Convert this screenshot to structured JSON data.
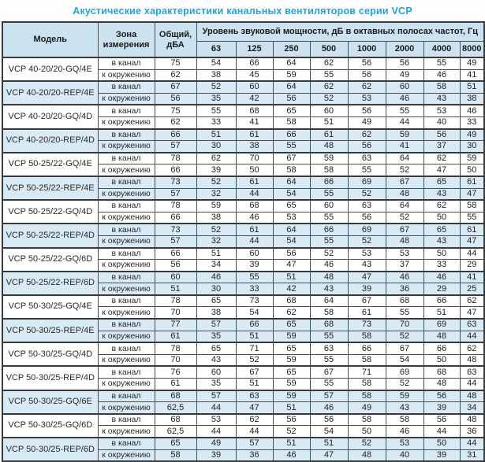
{
  "title": "Акустические характеристики канальных вентиляторов  серии VCP",
  "colors": {
    "title_accent": "#1da6dd",
    "header_bg": "#cbe2f1",
    "highlight_row_bg": "#d8eaf6",
    "border": "#4d4d4d"
  },
  "table": {
    "headers": {
      "model": "Модель",
      "zone": "Зона измерения",
      "total": "Общий, дБА",
      "freq_title": "Уровень звуковой мощности, дБ в октавных полосах частот, Гц",
      "frequencies": [
        "63",
        "125",
        "250",
        "500",
        "1000",
        "2000",
        "4000",
        "8000"
      ]
    },
    "zone_labels": [
      "в канал",
      "к окружению"
    ],
    "groups": [
      {
        "model": "VCP 40-20/20-GQ/4E",
        "highlight": false,
        "rows": [
          {
            "zone": "в канал",
            "total": "75",
            "values": [
              "54",
              "66",
              "64",
              "62",
              "56",
              "56",
              "55",
              "49"
            ]
          },
          {
            "zone": "к окружению",
            "total": "62",
            "values": [
              "38",
              "45",
              "59",
              "55",
              "56",
              "49",
              "46",
              "41"
            ]
          }
        ]
      },
      {
        "model": "VCP 40-20/20-REP/4E",
        "highlight": true,
        "rows": [
          {
            "zone": "в канал",
            "total": "67",
            "values": [
              "52",
              "60",
              "64",
              "62",
              "62",
              "60",
              "58",
              "51"
            ]
          },
          {
            "zone": "к окружению",
            "total": "56",
            "values": [
              "35",
              "42",
              "56",
              "52",
              "53",
              "46",
              "43",
              "38"
            ]
          }
        ]
      },
      {
        "model": "VCP 40-20/20-GQ/4D",
        "highlight": false,
        "rows": [
          {
            "zone": "в канал",
            "total": "75",
            "values": [
              "55",
              "68",
              "65",
              "60",
              "56",
              "55",
              "53",
              "46"
            ]
          },
          {
            "zone": "к окружению",
            "total": "62",
            "values": [
              "33",
              "41",
              "58",
              "51",
              "49",
              "44",
              "40",
              "33"
            ]
          }
        ]
      },
      {
        "model": "VCP 40-20/20-REP/4D",
        "highlight": true,
        "rows": [
          {
            "zone": "в канал",
            "total": "66",
            "values": [
              "51",
              "61",
              "66",
              "61",
              "62",
              "59",
              "56",
              "49"
            ]
          },
          {
            "zone": "к окружению",
            "total": "57",
            "values": [
              "30",
              "38",
              "55",
              "48",
              "56",
              "41",
              "37",
              "30"
            ]
          }
        ]
      },
      {
        "model": "VCP 50-25/22-GQ/4E",
        "highlight": false,
        "rows": [
          {
            "zone": "в канал",
            "total": "78",
            "values": [
              "62",
              "70",
              "67",
              "59",
              "63",
              "64",
              "62",
              "59"
            ]
          },
          {
            "zone": "к окружению",
            "total": "66",
            "values": [
              "39",
              "50",
              "58",
              "58",
              "55",
              "52",
              "47",
              "50"
            ]
          }
        ]
      },
      {
        "model": "VCP 50-25/22-REP/4E",
        "highlight": true,
        "rows": [
          {
            "zone": "в канал",
            "total": "73",
            "values": [
              "52",
              "61",
              "64",
              "66",
              "69",
              "67",
              "65",
              "61"
            ]
          },
          {
            "zone": "к окружению",
            "total": "57",
            "values": [
              "32",
              "44",
              "54",
              "55",
              "52",
              "48",
              "43",
              "47"
            ]
          }
        ]
      },
      {
        "model": "VCP 50-25/22-GQ/4D",
        "highlight": false,
        "rows": [
          {
            "zone": "в канал",
            "total": "78",
            "values": [
              "59",
              "68",
              "65",
              "60",
              "63",
              "64",
              "62",
              "58"
            ]
          },
          {
            "zone": "к окружению",
            "total": "66",
            "values": [
              "38",
              "46",
              "53",
              "55",
              "56",
              "52",
              "50",
              "55"
            ]
          }
        ]
      },
      {
        "model": "VCP 50-25/22-REP/4D",
        "highlight": true,
        "rows": [
          {
            "zone": "в канал",
            "total": "73",
            "values": [
              "52",
              "61",
              "64",
              "66",
              "69",
              "67",
              "65",
              "61"
            ]
          },
          {
            "zone": "к окружению",
            "total": "57",
            "values": [
              "32",
              "44",
              "54",
              "55",
              "52",
              "48",
              "43",
              "47"
            ]
          }
        ]
      },
      {
        "model": "VCP 50-25/22-GQ/6D",
        "highlight": false,
        "rows": [
          {
            "zone": "в канал",
            "total": "66",
            "values": [
              "51",
              "60",
              "56",
              "52",
              "53",
              "53",
              "50",
              "44"
            ]
          },
          {
            "zone": "к окружению",
            "total": "56",
            "values": [
              "34",
              "39",
              "47",
              "46",
              "43",
              "37",
              "33",
              "29"
            ]
          }
        ]
      },
      {
        "model": "VCP 50-25/22-REP/6D",
        "highlight": true,
        "rows": [
          {
            "zone": "в канал",
            "total": "60",
            "values": [
              "46",
              "55",
              "51",
              "48",
              "47",
              "46",
              "46",
              "41"
            ]
          },
          {
            "zone": "к окружению",
            "total": "51",
            "values": [
              "30",
              "33",
              "42",
              "43",
              "39",
              "36",
              "29",
              "25"
            ]
          }
        ]
      },
      {
        "model": "VCP 50-30/25-GQ/4E",
        "highlight": false,
        "rows": [
          {
            "zone": "в канал",
            "total": "78",
            "values": [
              "65",
              "73",
              "68",
              "64",
              "67",
              "68",
              "66",
              "62"
            ]
          },
          {
            "zone": "к окружению",
            "total": "70",
            "values": [
              "38",
              "54",
              "62",
              "58",
              "61",
              "55",
              "51",
              "47"
            ]
          }
        ]
      },
      {
        "model": "VCP 50-30/25-REP/4E",
        "highlight": true,
        "rows": [
          {
            "zone": "в канал",
            "total": "77",
            "values": [
              "57",
              "66",
              "65",
              "68",
              "73",
              "70",
              "69",
              "63"
            ]
          },
          {
            "zone": "к окружению",
            "total": "61",
            "values": [
              "35",
              "51",
              "59",
              "55",
              "58",
              "52",
              "48",
              "44"
            ]
          }
        ]
      },
      {
        "model": "VCP 50-30/25-GQ/4D",
        "highlight": false,
        "rows": [
          {
            "zone": "в канал",
            "total": "78",
            "values": [
              "65",
              "71",
              "65",
              "63",
              "66",
              "67",
              "66",
              "62"
            ]
          },
          {
            "zone": "к окружению",
            "total": "70",
            "values": [
              "43",
              "52",
              "59",
              "55",
              "58",
              "54",
              "50",
              "48"
            ]
          }
        ]
      },
      {
        "model": "VCP 50-30/25-REP/4D",
        "highlight": false,
        "rows": [
          {
            "zone": "в канал",
            "total": "76",
            "values": [
              "60",
              "67",
              "65",
              "67",
              "71",
              "69",
              "68",
              "63"
            ]
          },
          {
            "zone": "к окружению",
            "total": "61",
            "values": [
              "35",
              "51",
              "59",
              "55",
              "58",
              "52",
              "48",
              "44"
            ]
          }
        ]
      },
      {
        "model": "VCP 50-30/25-GQ/6E",
        "highlight": true,
        "rows": [
          {
            "zone": "в канал",
            "total": "68",
            "values": [
              "57",
              "63",
              "59",
              "57",
              "58",
              "59",
              "56",
              "48"
            ]
          },
          {
            "zone": "к окружению",
            "total": "62,5",
            "values": [
              "44",
              "47",
              "51",
              "46",
              "49",
              "43",
              "39",
              "34"
            ]
          }
        ]
      },
      {
        "model": "VCP 50-30/25-GQ/6D",
        "highlight": false,
        "rows": [
          {
            "zone": "в канал",
            "total": "68",
            "values": [
              "53",
              "62",
              "56",
              "56",
              "58",
              "58",
              "56",
              "48"
            ]
          },
          {
            "zone": "к окружению",
            "total": "62,5",
            "values": [
              "44",
              "44",
              "52",
              "54",
              "50",
              "46",
              "44",
              "36"
            ]
          }
        ]
      },
      {
        "model": "VCP 50-30/25-REP/6D",
        "highlight": true,
        "rows": [
          {
            "zone": "в канал",
            "total": "65",
            "values": [
              "49",
              "57",
              "51",
              "51",
              "52",
              "53",
              "50",
              "44"
            ]
          },
          {
            "zone": "к окружению",
            "total": "58",
            "values": [
              "39",
              "36",
              "46",
              "47",
              "48",
              "40",
              "39",
              "31"
            ]
          }
        ]
      }
    ]
  }
}
